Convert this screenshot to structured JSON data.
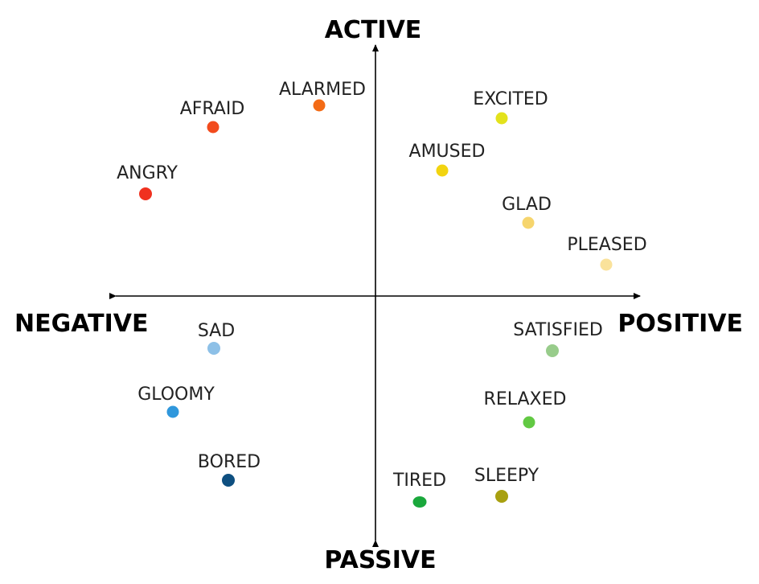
{
  "axes": {
    "top": "ACTIVE",
    "bottom": "PASSIVE",
    "left": "NEGATIVE",
    "right": "POSITIVE"
  },
  "emotions": [
    {
      "label": "ALARMED",
      "color": "#f36b16"
    },
    {
      "label": "AFRAID",
      "color": "#f24b1d"
    },
    {
      "label": "ANGRY",
      "color": "#f0311f"
    },
    {
      "label": "EXCITED",
      "color": "#e3e21c"
    },
    {
      "label": "AMUSED",
      "color": "#f2d410"
    },
    {
      "label": "GLAD",
      "color": "#f6d56d"
    },
    {
      "label": "PLEASED",
      "color": "#fae29b"
    },
    {
      "label": "SAD",
      "color": "#8dc0e7"
    },
    {
      "label": "GLOOMY",
      "color": "#2f97dc"
    },
    {
      "label": "BORED",
      "color": "#0e4f80"
    },
    {
      "label": "SATISFIED",
      "color": "#98cc8b"
    },
    {
      "label": "RELAXED",
      "color": "#62c943"
    },
    {
      "label": "TIRED",
      "color": "#1aa83c"
    },
    {
      "label": "SLEEPY",
      "color": "#a8a010"
    }
  ]
}
